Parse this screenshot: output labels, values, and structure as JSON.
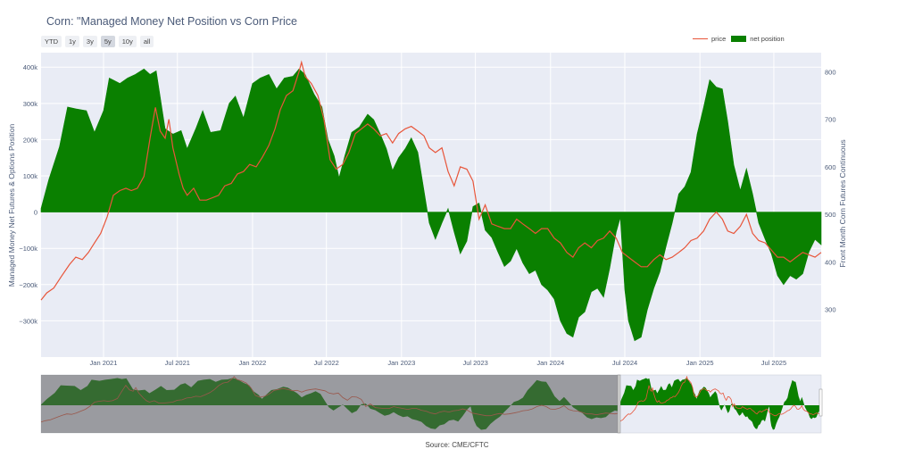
{
  "title": "Corn: \"Managed Money Net Position vs Corn Price",
  "range_buttons": [
    "YTD",
    "1y",
    "3y",
    "5y",
    "10y",
    "all"
  ],
  "active_range": "5y",
  "legend": {
    "price_label": "price",
    "net_label": "net position"
  },
  "source": "Source: CME/CFTC",
  "colors": {
    "net": "#0a8000",
    "price": "#e8553a",
    "plot_bg": "#e9ecf5",
    "grid": "#ffffff"
  },
  "chart_data": {
    "type": "area",
    "title": "Corn: \"Managed Money Net Position vs Corn Price",
    "xlabel": "",
    "ylabel": "Managed Money Net Futures & Options Position",
    "y2label": "Front Month Corn Futures Continuous",
    "x_range": [
      "2020-08-01",
      "2025-10-25"
    ],
    "ylim": [
      -400000,
      440000
    ],
    "y2lim": [
      200,
      840
    ],
    "y_ticks": [
      400000,
      300000,
      200000,
      100000,
      0,
      -100000,
      -200000,
      -300000
    ],
    "y_tick_labels": [
      "400k",
      "300k",
      "200k",
      "100k",
      "0",
      "−100k",
      "−200k",
      "−300k"
    ],
    "y2_ticks": [
      800,
      700,
      600,
      500,
      400,
      300
    ],
    "y2_tick_labels": [
      "800",
      "700",
      "600",
      "500",
      "400",
      "300"
    ],
    "x_ticks": [
      "2021-01-01",
      "2021-07-01",
      "2022-01-01",
      "2022-07-01",
      "2023-01-01",
      "2023-07-01",
      "2024-01-01",
      "2024-07-01",
      "2025-01-01",
      "2025-07-01"
    ],
    "x_tick_labels": [
      "Jan 2021",
      "Jul 2021",
      "Jan 2022",
      "Jul 2022",
      "Jan 2023",
      "Jul 2023",
      "Jan 2024",
      "Jul 2024",
      "Jan 2025",
      "Jul 2025"
    ],
    "grid": true,
    "legend_position": "top-right",
    "series": [
      {
        "name": "net position",
        "type": "area",
        "axis": "y",
        "points": [
          [
            "2020-08-01",
            10000
          ],
          [
            "2020-08-20",
            90000
          ],
          [
            "2020-09-15",
            180000
          ],
          [
            "2020-10-05",
            290000
          ],
          [
            "2020-10-25",
            285000
          ],
          [
            "2020-11-20",
            280000
          ],
          [
            "2020-12-10",
            220000
          ],
          [
            "2021-01-01",
            280000
          ],
          [
            "2021-01-15",
            370000
          ],
          [
            "2021-02-10",
            355000
          ],
          [
            "2021-03-01",
            370000
          ],
          [
            "2021-03-20",
            380000
          ],
          [
            "2021-04-10",
            395000
          ],
          [
            "2021-04-25",
            380000
          ],
          [
            "2021-05-10",
            390000
          ],
          [
            "2021-06-01",
            230000
          ],
          [
            "2021-06-20",
            215000
          ],
          [
            "2021-07-10",
            225000
          ],
          [
            "2021-07-25",
            175000
          ],
          [
            "2021-08-15",
            230000
          ],
          [
            "2021-09-01",
            280000
          ],
          [
            "2021-09-20",
            220000
          ],
          [
            "2021-10-15",
            225000
          ],
          [
            "2021-11-05",
            300000
          ],
          [
            "2021-11-20",
            320000
          ],
          [
            "2021-12-10",
            260000
          ],
          [
            "2022-01-01",
            355000
          ],
          [
            "2022-01-20",
            370000
          ],
          [
            "2022-02-10",
            380000
          ],
          [
            "2022-03-01",
            340000
          ],
          [
            "2022-03-20",
            370000
          ],
          [
            "2022-04-10",
            375000
          ],
          [
            "2022-04-25",
            395000
          ],
          [
            "2022-05-10",
            380000
          ],
          [
            "2022-06-01",
            325000
          ],
          [
            "2022-06-20",
            290000
          ],
          [
            "2022-07-05",
            200000
          ],
          [
            "2022-07-20",
            155000
          ],
          [
            "2022-08-01",
            95000
          ],
          [
            "2022-08-15",
            155000
          ],
          [
            "2022-09-01",
            220000
          ],
          [
            "2022-09-20",
            235000
          ],
          [
            "2022-10-10",
            270000
          ],
          [
            "2022-10-25",
            255000
          ],
          [
            "2022-11-10",
            215000
          ],
          [
            "2022-11-25",
            175000
          ],
          [
            "2022-12-10",
            115000
          ],
          [
            "2022-12-25",
            150000
          ],
          [
            "2023-01-10",
            175000
          ],
          [
            "2023-01-25",
            205000
          ],
          [
            "2023-02-10",
            165000
          ],
          [
            "2023-02-25",
            60000
          ],
          [
            "2023-03-10",
            -30000
          ],
          [
            "2023-03-25",
            -75000
          ],
          [
            "2023-04-10",
            -30000
          ],
          [
            "2023-04-25",
            10000
          ],
          [
            "2023-05-10",
            -55000
          ],
          [
            "2023-05-25",
            -115000
          ],
          [
            "2023-06-10",
            -80000
          ],
          [
            "2023-06-25",
            15000
          ],
          [
            "2023-07-10",
            25000
          ],
          [
            "2023-07-25",
            -50000
          ],
          [
            "2023-08-10",
            -70000
          ],
          [
            "2023-08-25",
            -110000
          ],
          [
            "2023-09-10",
            -150000
          ],
          [
            "2023-09-25",
            -135000
          ],
          [
            "2023-10-10",
            -100000
          ],
          [
            "2023-10-25",
            -140000
          ],
          [
            "2023-11-10",
            -170000
          ],
          [
            "2023-11-25",
            -160000
          ],
          [
            "2023-12-10",
            -200000
          ],
          [
            "2023-12-25",
            -215000
          ],
          [
            "2024-01-10",
            -240000
          ],
          [
            "2024-01-25",
            -300000
          ],
          [
            "2024-02-10",
            -335000
          ],
          [
            "2024-02-25",
            -345000
          ],
          [
            "2024-03-10",
            -290000
          ],
          [
            "2024-03-25",
            -275000
          ],
          [
            "2024-04-10",
            -220000
          ],
          [
            "2024-04-25",
            -210000
          ],
          [
            "2024-05-10",
            -235000
          ],
          [
            "2024-05-25",
            -155000
          ],
          [
            "2024-06-10",
            -55000
          ],
          [
            "2024-06-20",
            -15000
          ],
          [
            "2024-07-01",
            -215000
          ],
          [
            "2024-07-10",
            -300000
          ],
          [
            "2024-07-25",
            -355000
          ],
          [
            "2024-08-10",
            -345000
          ],
          [
            "2024-08-25",
            -270000
          ],
          [
            "2024-09-10",
            -210000
          ],
          [
            "2024-09-25",
            -165000
          ],
          [
            "2024-10-10",
            -95000
          ],
          [
            "2024-10-25",
            -30000
          ],
          [
            "2024-11-10",
            50000
          ],
          [
            "2024-11-25",
            70000
          ],
          [
            "2024-12-10",
            110000
          ],
          [
            "2024-12-25",
            215000
          ],
          [
            "2025-01-10",
            290000
          ],
          [
            "2025-01-25",
            365000
          ],
          [
            "2025-02-10",
            345000
          ],
          [
            "2025-02-25",
            340000
          ],
          [
            "2025-03-10",
            250000
          ],
          [
            "2025-03-25",
            130000
          ],
          [
            "2025-04-10",
            60000
          ],
          [
            "2025-04-25",
            120000
          ],
          [
            "2025-05-10",
            50000
          ],
          [
            "2025-05-25",
            -30000
          ],
          [
            "2025-06-10",
            -75000
          ],
          [
            "2025-06-25",
            -115000
          ],
          [
            "2025-07-10",
            -175000
          ],
          [
            "2025-07-25",
            -200000
          ],
          [
            "2025-08-10",
            -175000
          ],
          [
            "2025-08-25",
            -185000
          ],
          [
            "2025-09-10",
            -170000
          ],
          [
            "2025-09-25",
            -110000
          ],
          [
            "2025-10-10",
            -75000
          ],
          [
            "2025-10-25",
            -90000
          ]
        ]
      },
      {
        "name": "price",
        "type": "line",
        "axis": "y2",
        "points": [
          [
            "2020-08-01",
            320
          ],
          [
            "2020-08-15",
            335
          ],
          [
            "2020-09-01",
            345
          ],
          [
            "2020-09-20",
            370
          ],
          [
            "2020-10-10",
            395
          ],
          [
            "2020-10-25",
            410
          ],
          [
            "2020-11-10",
            405
          ],
          [
            "2020-11-25",
            420
          ],
          [
            "2020-12-10",
            440
          ],
          [
            "2020-12-25",
            460
          ],
          [
            "2021-01-10",
            495
          ],
          [
            "2021-01-25",
            540
          ],
          [
            "2021-02-10",
            550
          ],
          [
            "2021-02-25",
            555
          ],
          [
            "2021-03-10",
            550
          ],
          [
            "2021-03-25",
            555
          ],
          [
            "2021-04-10",
            580
          ],
          [
            "2021-04-25",
            660
          ],
          [
            "2021-05-08",
            725
          ],
          [
            "2021-05-20",
            675
          ],
          [
            "2021-06-01",
            660
          ],
          [
            "2021-06-10",
            700
          ],
          [
            "2021-06-20",
            640
          ],
          [
            "2021-07-05",
            585
          ],
          [
            "2021-07-15",
            555
          ],
          [
            "2021-07-25",
            540
          ],
          [
            "2021-08-10",
            555
          ],
          [
            "2021-08-25",
            530
          ],
          [
            "2021-09-10",
            530
          ],
          [
            "2021-09-25",
            535
          ],
          [
            "2021-10-10",
            540
          ],
          [
            "2021-10-25",
            560
          ],
          [
            "2021-11-10",
            565
          ],
          [
            "2021-11-25",
            585
          ],
          [
            "2021-12-10",
            590
          ],
          [
            "2021-12-25",
            605
          ],
          [
            "2022-01-10",
            600
          ],
          [
            "2022-01-25",
            620
          ],
          [
            "2022-02-10",
            645
          ],
          [
            "2022-02-25",
            680
          ],
          [
            "2022-03-10",
            720
          ],
          [
            "2022-03-25",
            750
          ],
          [
            "2022-04-10",
            760
          ],
          [
            "2022-04-25",
            800
          ],
          [
            "2022-05-01",
            820
          ],
          [
            "2022-05-10",
            790
          ],
          [
            "2022-05-25",
            775
          ],
          [
            "2022-06-10",
            750
          ],
          [
            "2022-06-25",
            700
          ],
          [
            "2022-07-10",
            615
          ],
          [
            "2022-07-25",
            595
          ],
          [
            "2022-08-10",
            605
          ],
          [
            "2022-08-25",
            630
          ],
          [
            "2022-09-10",
            670
          ],
          [
            "2022-09-25",
            680
          ],
          [
            "2022-10-10",
            690
          ],
          [
            "2022-10-25",
            680
          ],
          [
            "2022-11-10",
            665
          ],
          [
            "2022-11-25",
            670
          ],
          [
            "2022-12-10",
            650
          ],
          [
            "2022-12-25",
            670
          ],
          [
            "2023-01-10",
            680
          ],
          [
            "2023-01-25",
            685
          ],
          [
            "2023-02-10",
            675
          ],
          [
            "2023-02-25",
            665
          ],
          [
            "2023-03-10",
            640
          ],
          [
            "2023-03-25",
            630
          ],
          [
            "2023-04-10",
            640
          ],
          [
            "2023-04-25",
            590
          ],
          [
            "2023-05-10",
            560
          ],
          [
            "2023-05-25",
            600
          ],
          [
            "2023-06-10",
            595
          ],
          [
            "2023-06-25",
            570
          ],
          [
            "2023-07-10",
            490
          ],
          [
            "2023-07-25",
            520
          ],
          [
            "2023-08-10",
            480
          ],
          [
            "2023-08-25",
            475
          ],
          [
            "2023-09-10",
            470
          ],
          [
            "2023-09-25",
            470
          ],
          [
            "2023-10-10",
            490
          ],
          [
            "2023-10-25",
            480
          ],
          [
            "2023-11-10",
            470
          ],
          [
            "2023-11-25",
            460
          ],
          [
            "2023-12-10",
            470
          ],
          [
            "2023-12-25",
            470
          ],
          [
            "2024-01-10",
            450
          ],
          [
            "2024-01-25",
            440
          ],
          [
            "2024-02-10",
            420
          ],
          [
            "2024-02-25",
            410
          ],
          [
            "2024-03-10",
            430
          ],
          [
            "2024-03-25",
            440
          ],
          [
            "2024-04-10",
            430
          ],
          [
            "2024-04-25",
            445
          ],
          [
            "2024-05-10",
            450
          ],
          [
            "2024-05-25",
            465
          ],
          [
            "2024-06-10",
            450
          ],
          [
            "2024-06-25",
            420
          ],
          [
            "2024-07-10",
            410
          ],
          [
            "2024-07-25",
            400
          ],
          [
            "2024-08-10",
            390
          ],
          [
            "2024-08-25",
            390
          ],
          [
            "2024-09-10",
            405
          ],
          [
            "2024-09-25",
            415
          ],
          [
            "2024-10-10",
            405
          ],
          [
            "2024-10-25",
            410
          ],
          [
            "2024-11-10",
            420
          ],
          [
            "2024-11-25",
            430
          ],
          [
            "2024-12-10",
            445
          ],
          [
            "2024-12-25",
            450
          ],
          [
            "2025-01-10",
            465
          ],
          [
            "2025-01-25",
            490
          ],
          [
            "2025-02-10",
            505
          ],
          [
            "2025-02-25",
            490
          ],
          [
            "2025-03-10",
            465
          ],
          [
            "2025-03-25",
            460
          ],
          [
            "2025-04-10",
            475
          ],
          [
            "2025-04-25",
            500
          ],
          [
            "2025-05-10",
            460
          ],
          [
            "2025-05-25",
            445
          ],
          [
            "2025-06-10",
            440
          ],
          [
            "2025-06-25",
            425
          ],
          [
            "2025-07-10",
            410
          ],
          [
            "2025-07-25",
            410
          ],
          [
            "2025-08-10",
            400
          ],
          [
            "2025-08-25",
            410
          ],
          [
            "2025-09-10",
            420
          ],
          [
            "2025-09-25",
            415
          ],
          [
            "2025-10-10",
            410
          ],
          [
            "2025-10-25",
            420
          ]
        ]
      }
    ]
  }
}
